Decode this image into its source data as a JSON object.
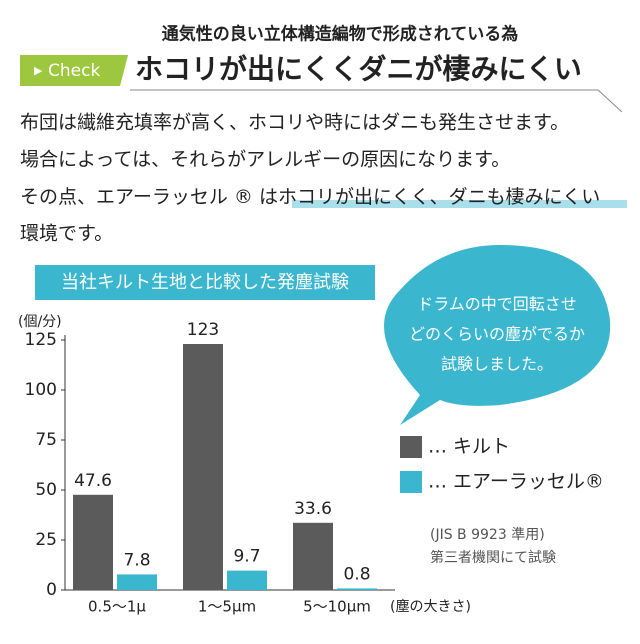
{
  "header": {
    "subtitle": "通気性の良い立体構造編物で形成されている為",
    "tag": "Check",
    "title": "ホコリが出にくくダニが棲みにくい"
  },
  "paragraph": [
    "布団は繊維充填率が高く、ホコリや時にはダニも発生させます。",
    "場合によっては、それらがアレルギーの原因になります。",
    "その点、エアーラッセル ® ",
    "はホコリが出にくく、ダニも棲みにくい",
    "環境です。"
  ],
  "chart_data": {
    "type": "bar",
    "title": "当社キルト生地と比較した発塵試験",
    "y_label": "(個/分)",
    "x_label": "(塵の大きさ)",
    "categories": [
      "0.5〜1μ",
      "1〜5μm",
      "5〜10μm"
    ],
    "series": [
      {
        "name": "… キルト",
        "color": "#5b5b5b",
        "values": [
          47.6,
          123,
          33.6
        ]
      },
      {
        "name": "… エアーラッセル®",
        "color": "#3bb6cf",
        "values": [
          7.8,
          9.7,
          0.8
        ]
      }
    ],
    "ylim": [
      0,
      125
    ],
    "yticks": [
      0,
      25,
      50,
      75,
      100,
      125
    ],
    "callout": [
      "ドラムの中で回転させ",
      "どのくらいの塵がでるか",
      "試験しました。"
    ],
    "notes": [
      "(JIS B 9923 準用)",
      "第三者機関にて試験"
    ]
  }
}
